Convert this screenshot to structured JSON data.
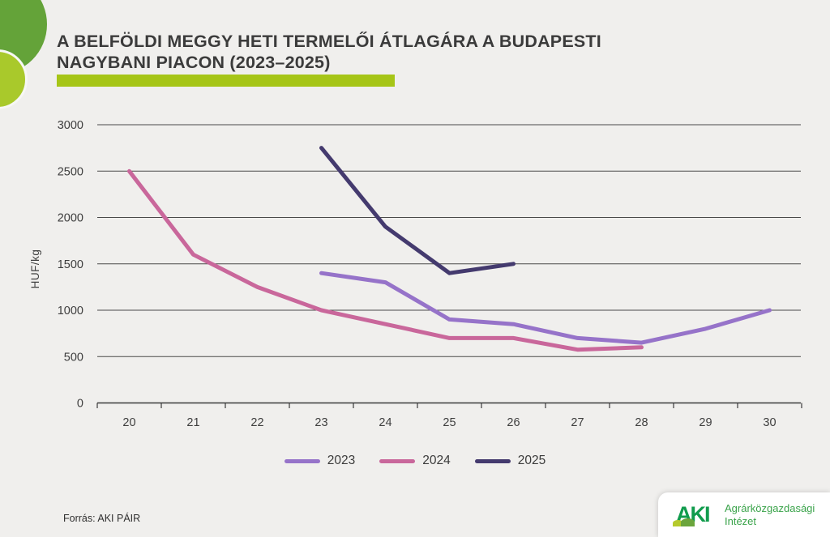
{
  "header": {
    "title_line1": "A BELFÖLDI MEGGY HETI TERMELŐI ÁTLAGÁRA A BUDAPESTI",
    "title_line2": "NAGYBANI PIACON (2023–2025)"
  },
  "footer": {
    "source": "Forrás: AKI PÁIR"
  },
  "logo": {
    "abbr": "AKI",
    "name_line1": "Agrárközgazdasági",
    "name_line2": "Intézet"
  },
  "colors": {
    "background": "#f0efed",
    "accent_lime": "#a6c517",
    "circle_green": "#64a339",
    "circle_lime": "#a9c92b",
    "grid": "#4a4a4a",
    "axis": "#3a3a3a",
    "logo_green": "#119c4d",
    "logo_text_green": "#3aa34a"
  },
  "chart_data": {
    "type": "line",
    "title": "A belföldi meggy heti termelői átlagára a budapesti nagybani piacon (2023–2025)",
    "xlabel": "",
    "ylabel": "HUF/kg",
    "x_weeks": [
      20,
      21,
      22,
      23,
      24,
      25,
      26,
      27,
      28,
      29,
      30
    ],
    "yticks": [
      0,
      500,
      1000,
      1500,
      2000,
      2500,
      3000
    ],
    "ylim": [
      0,
      3000
    ],
    "grid": true,
    "legend_position": "bottom",
    "series": [
      {
        "name": "2023",
        "color": "#9673c9",
        "x": [
          23,
          24,
          25,
          26,
          27,
          28,
          29,
          30
        ],
        "values": [
          1400,
          1300,
          900,
          850,
          700,
          650,
          800,
          1000
        ]
      },
      {
        "name": "2024",
        "color": "#c9679b",
        "x": [
          20,
          21,
          22,
          23,
          24,
          25,
          26,
          27,
          28
        ],
        "values": [
          2500,
          1600,
          1250,
          1000,
          850,
          700,
          700,
          575,
          600
        ]
      },
      {
        "name": "2025",
        "color": "#443a6e",
        "x": [
          23,
          24,
          25,
          26
        ],
        "values": [
          2750,
          1900,
          1400,
          1500
        ]
      }
    ]
  }
}
